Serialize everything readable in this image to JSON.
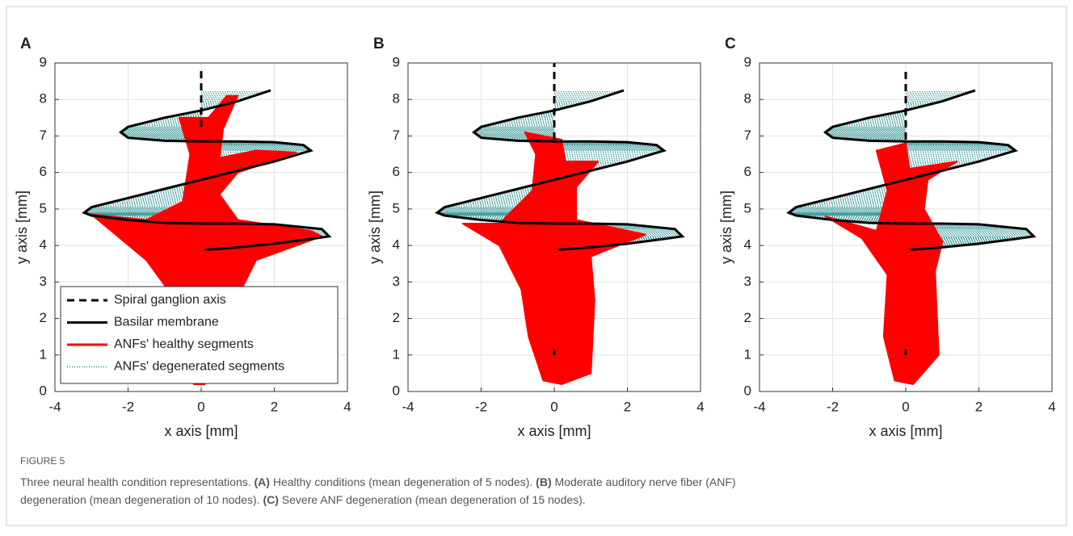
{
  "chart_data": [
    {
      "type": "line",
      "panel_label": "A",
      "xlabel": "x axis [mm]",
      "ylabel": "y axis [mm]",
      "xlim": [
        -4,
        4
      ],
      "ylim": [
        0,
        9
      ],
      "xticks": [
        -4,
        -2,
        0,
        2,
        4
      ],
      "yticks": [
        0,
        1,
        2,
        3,
        4,
        5,
        6,
        7,
        8,
        9
      ],
      "grid": true,
      "legend": "lower-left",
      "series": [
        {
          "name": "Spiral ganglion axis",
          "color": "#000000",
          "style": "dashed",
          "x": [
            0,
            0
          ],
          "y": [
            7.25,
            8.8
          ]
        },
        {
          "name": "Basilar membrane",
          "color": "#000000",
          "style": "solid",
          "x": [
            0.1,
            1,
            2,
            3,
            3.5,
            3.3,
            2,
            1,
            0,
            -1,
            -2,
            -3,
            -3.2,
            -3,
            -2,
            -1,
            0,
            1,
            2,
            3,
            2.8,
            2,
            1,
            0,
            -1,
            -2,
            -2.2,
            -2,
            -1,
            0,
            1,
            1.9
          ],
          "y": [
            3.88,
            3.95,
            4.05,
            4.18,
            4.25,
            4.45,
            4.58,
            4.6,
            4.6,
            4.62,
            4.7,
            4.82,
            4.9,
            5.05,
            5.3,
            5.55,
            5.8,
            6.05,
            6.3,
            6.6,
            6.75,
            6.83,
            6.85,
            6.85,
            6.87,
            6.95,
            7.1,
            7.25,
            7.5,
            7.7,
            7.95,
            8.25
          ]
        },
        {
          "name": "ANFs' healthy segments",
          "color": "#ff0000",
          "style": "fill",
          "x": [
            -0.2,
            -0.7,
            -1.5,
            -3,
            -1.5,
            -0.5,
            -0.3,
            -0.6,
            0.2,
            0.7,
            1,
            0.6,
            0.5,
            1.5,
            2.6,
            1,
            0.5,
            1,
            3,
            3.3,
            1.5,
            1,
            0.5,
            0.1
          ],
          "y": [
            0.2,
            2.5,
            3.6,
            4.85,
            4.7,
            5.2,
            6.5,
            7.5,
            7.5,
            8.1,
            8.1,
            7.2,
            6.4,
            6.6,
            6.55,
            6,
            5.4,
            4.7,
            4.4,
            4.25,
            3.6,
            2.6,
            1.5,
            0.2
          ]
        },
        {
          "name": "ANFs' degenerated segments",
          "color": "#1f8a8a",
          "style": "dotted"
        }
      ]
    },
    {
      "type": "line",
      "panel_label": "B",
      "xlabel": "x axis [mm]",
      "ylabel": "y axis [mm]",
      "xlim": [
        -4,
        4
      ],
      "ylim": [
        0,
        9
      ],
      "xticks": [
        -4,
        -2,
        0,
        2,
        4
      ],
      "yticks": [
        0,
        1,
        2,
        3,
        4,
        5,
        6,
        7,
        8,
        9
      ],
      "grid": true,
      "series": [
        {
          "color": "#000000",
          "style": "dashed",
          "x": [
            0,
            0,
            null,
            0,
            0
          ],
          "y": [
            1,
            1.15,
            null,
            6.9,
            9
          ]
        },
        {
          "color": "#000000",
          "style": "solid",
          "x": [
            0.1,
            1,
            2,
            3,
            3.5,
            3.3,
            2,
            1,
            0,
            -1,
            -2,
            -3,
            -3.2,
            -3,
            -2,
            -1,
            0,
            1,
            2,
            3,
            2.8,
            2,
            1,
            0,
            -1,
            -2,
            -2.2,
            -2,
            -1,
            0,
            1,
            1.9
          ],
          "y": [
            3.88,
            3.95,
            4.05,
            4.18,
            4.25,
            4.45,
            4.58,
            4.6,
            4.6,
            4.62,
            4.7,
            4.82,
            4.9,
            5.05,
            5.3,
            5.55,
            5.8,
            6.05,
            6.3,
            6.6,
            6.75,
            6.83,
            6.85,
            6.85,
            6.87,
            6.95,
            7.1,
            7.25,
            7.5,
            7.7,
            7.95,
            8.25
          ]
        },
        {
          "color": "#ff0000",
          "style": "fill",
          "x": [
            -0.3,
            -0.7,
            -0.9,
            -1.5,
            -2.5,
            -1.5,
            -0.6,
            -0.5,
            -0.8,
            0.2,
            0.3,
            1.2,
            0.6,
            0.6,
            2.5,
            1,
            1.1,
            1,
            0.2
          ],
          "y": [
            0.3,
            1.5,
            2.8,
            4,
            4.6,
            4.6,
            5.5,
            6.5,
            7.1,
            6.9,
            6.3,
            6.3,
            5.6,
            4.7,
            4.3,
            3.7,
            2.5,
            0.5,
            0.2
          ]
        },
        {
          "color": "#1f8a8a",
          "style": "dotted"
        }
      ]
    },
    {
      "type": "line",
      "panel_label": "C",
      "xlabel": "x axis [mm]",
      "ylabel": "y axis [mm]",
      "xlim": [
        -4,
        4
      ],
      "ylim": [
        0,
        9
      ],
      "xticks": [
        -4,
        -2,
        0,
        2,
        4
      ],
      "yticks": [
        0,
        1,
        2,
        3,
        4,
        5,
        6,
        7,
        8,
        9
      ],
      "grid": true,
      "series": [
        {
          "color": "#000000",
          "style": "dashed",
          "x": [
            0,
            0,
            null,
            0,
            0
          ],
          "y": [
            1,
            1.15,
            null,
            6.9,
            8.8
          ]
        },
        {
          "color": "#000000",
          "style": "solid",
          "x": [
            0.1,
            1,
            2,
            3,
            3.5,
            3.3,
            2,
            1,
            0,
            -1,
            -2,
            -3,
            -3.2,
            -3,
            -2,
            -1,
            0,
            1,
            2,
            3,
            2.8,
            2,
            1,
            0,
            -1,
            -2,
            -2.2,
            -2,
            -1,
            0,
            1,
            1.9
          ],
          "y": [
            3.88,
            3.95,
            4.05,
            4.18,
            4.25,
            4.45,
            4.58,
            4.6,
            4.6,
            4.62,
            4.7,
            4.82,
            4.9,
            5.05,
            5.3,
            5.55,
            5.8,
            6.05,
            6.3,
            6.6,
            6.75,
            6.83,
            6.85,
            6.85,
            6.87,
            6.95,
            7.1,
            7.25,
            7.5,
            7.7,
            7.95,
            8.25
          ]
        },
        {
          "color": "#ff0000",
          "style": "fill",
          "x": [
            -0.3,
            -0.6,
            -0.5,
            -1.2,
            -2.2,
            -0.8,
            -0.5,
            -0.8,
            0,
            0.1,
            1.4,
            0.6,
            0.5,
            1,
            0.8,
            0.9,
            0.2
          ],
          "y": [
            0.3,
            1.5,
            3.2,
            4.2,
            4.8,
            4.4,
            5.5,
            6.6,
            6.8,
            6.1,
            6.3,
            5.8,
            5,
            4.1,
            3.3,
            1,
            0.2
          ]
        },
        {
          "color": "#1f8a8a",
          "style": "dotted"
        }
      ]
    }
  ],
  "caption": {
    "label": "FIGURE 5",
    "segments": [
      {
        "text": "Three neural health condition representations. ",
        "bold": false
      },
      {
        "text": "(A)",
        "bold": true
      },
      {
        "text": " Healthy conditions (mean degeneration of 5 nodes). ",
        "bold": false
      },
      {
        "text": "(B)",
        "bold": true
      },
      {
        "text": " Moderate auditory nerve fiber (ANF)",
        "bold": false
      },
      {
        "text": "degeneration (mean degeneration of 10 nodes). ",
        "bold": false,
        "newline": true
      },
      {
        "text": "(C)",
        "bold": true
      },
      {
        "text": " Severe ANF degeneration (mean degeneration of 15 nodes).",
        "bold": false
      }
    ]
  }
}
